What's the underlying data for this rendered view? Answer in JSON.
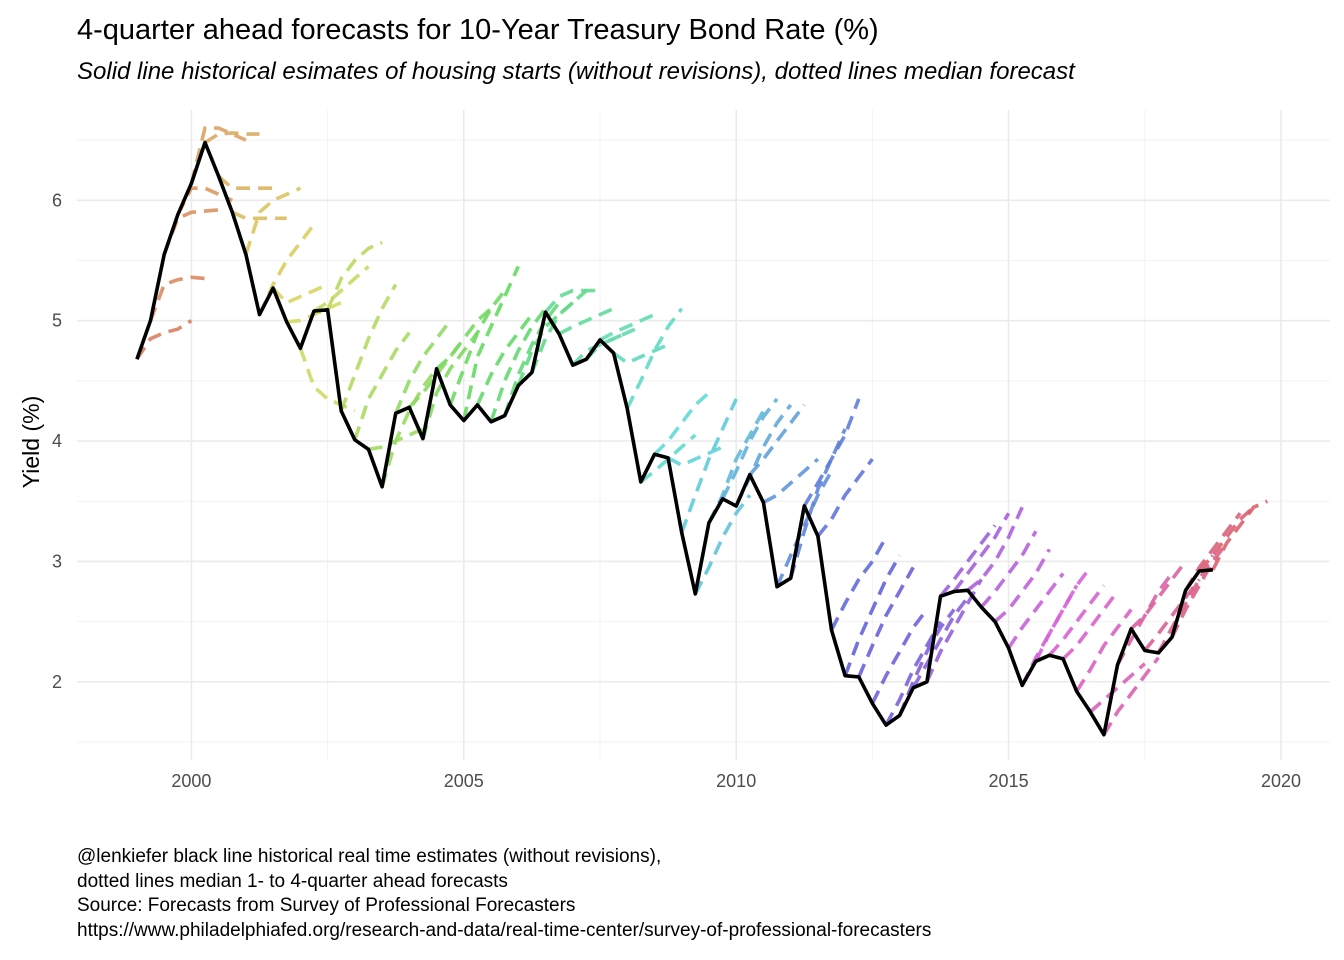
{
  "chart_data": {
    "type": "line",
    "title": "4-quarter ahead forecasts for 10-Year Treasury Bond Rate (%)",
    "subtitle": "Solid line historical esimates of housing starts (without revisions), dotted lines median forecast",
    "xlabel": "",
    "ylabel": "Yield (%)",
    "xlim": [
      1997.9,
      2020.9
    ],
    "ylim": [
      1.35,
      6.75
    ],
    "x_ticks": [
      2000,
      2005,
      2010,
      2015,
      2020
    ],
    "x_tick_labels": [
      "2000",
      "2005",
      "2010",
      "2015",
      "2020"
    ],
    "y_ticks": [
      2,
      3,
      4,
      5,
      6
    ],
    "y_tick_labels": [
      "2",
      "3",
      "4",
      "5",
      "6"
    ],
    "grid": true,
    "legend": "none",
    "historical": {
      "name": "",
      "color": "#000000",
      "x": [
        1999.0,
        1999.25,
        1999.5,
        1999.75,
        2000.0,
        2000.25,
        2000.5,
        2000.75,
        2001.0,
        2001.25,
        2001.5,
        2001.75,
        2002.0,
        2002.25,
        2002.5,
        2002.75,
        2003.0,
        2003.25,
        2003.5,
        2003.75,
        2004.0,
        2004.25,
        2004.5,
        2004.75,
        2005.0,
        2005.25,
        2005.5,
        2005.75,
        2006.0,
        2006.25,
        2006.5,
        2006.75,
        2007.0,
        2007.25,
        2007.5,
        2007.75,
        2008.0,
        2008.25,
        2008.5,
        2008.75,
        2009.0,
        2009.25,
        2009.5,
        2009.75,
        2010.0,
        2010.25,
        2010.5,
        2010.75,
        2011.0,
        2011.25,
        2011.5,
        2011.75,
        2012.0,
        2012.25,
        2012.5,
        2012.75,
        2013.0,
        2013.25,
        2013.5,
        2013.75,
        2014.0,
        2014.25,
        2014.5,
        2014.75,
        2015.0,
        2015.25,
        2015.5,
        2015.75,
        2016.0,
        2016.25,
        2016.5,
        2016.75,
        2017.0,
        2017.25,
        2017.5,
        2017.75,
        2018.0,
        2018.25,
        2018.5,
        2018.75
      ],
      "y": [
        4.68,
        5.0,
        5.55,
        5.88,
        6.14,
        6.48,
        6.2,
        5.9,
        5.55,
        5.05,
        5.27,
        4.99,
        4.77,
        5.08,
        5.09,
        4.25,
        4.01,
        3.93,
        3.62,
        4.23,
        4.28,
        4.02,
        4.6,
        4.3,
        4.17,
        4.3,
        4.16,
        4.21,
        4.46,
        4.57,
        5.07,
        4.89,
        4.63,
        4.68,
        4.84,
        4.73,
        4.27,
        3.66,
        3.89,
        3.86,
        3.24,
        2.73,
        3.32,
        3.52,
        3.46,
        3.72,
        3.49,
        2.79,
        2.86,
        3.46,
        3.21,
        2.43,
        2.05,
        2.04,
        1.82,
        1.64,
        1.72,
        1.95,
        2.0,
        2.71,
        2.75,
        2.76,
        2.62,
        2.5,
        2.28,
        1.97,
        2.17,
        2.22,
        2.19,
        1.92,
        1.75,
        1.56,
        2.14,
        2.44,
        2.26,
        2.24,
        2.37,
        2.76,
        2.92,
        2.93
      ]
    },
    "forecast_series": [
      {
        "start": 1999.0,
        "values": [
          4.68,
          4.85,
          4.9,
          4.93,
          5.0
        ]
      },
      {
        "start": 1999.25,
        "values": [
          5.0,
          5.3,
          5.34,
          5.36,
          5.35
        ]
      },
      {
        "start": 1999.5,
        "values": [
          5.55,
          5.85,
          5.9,
          5.91,
          5.92
        ]
      },
      {
        "start": 1999.75,
        "values": [
          5.88,
          6.1,
          6.1,
          6.05,
          6.0
        ]
      },
      {
        "start": 2000.0,
        "values": [
          6.14,
          6.6,
          6.6,
          6.55,
          6.5
        ]
      },
      {
        "start": 2000.25,
        "values": [
          6.48,
          6.55,
          6.56,
          6.55,
          6.55
        ]
      },
      {
        "start": 2000.5,
        "values": [
          6.2,
          6.1,
          6.1,
          6.1,
          6.1
        ]
      },
      {
        "start": 2000.75,
        "values": [
          5.9,
          5.85,
          5.85,
          5.85,
          5.85
        ]
      },
      {
        "start": 2001.0,
        "values": [
          5.55,
          5.9,
          6.0,
          6.05,
          6.1
        ]
      },
      {
        "start": 2001.25,
        "values": [
          5.05,
          5.3,
          5.5,
          5.65,
          5.8
        ]
      },
      {
        "start": 2001.5,
        "values": [
          5.27,
          5.15,
          5.2,
          5.25,
          5.3
        ]
      },
      {
        "start": 2001.75,
        "values": [
          4.99,
          5.0,
          5.05,
          5.1,
          5.15
        ]
      },
      {
        "start": 2002.0,
        "values": [
          4.77,
          4.45,
          4.35,
          4.3,
          4.25
        ]
      },
      {
        "start": 2002.25,
        "values": [
          5.08,
          5.15,
          5.25,
          5.35,
          5.45
        ]
      },
      {
        "start": 2002.5,
        "values": [
          5.09,
          5.35,
          5.5,
          5.6,
          5.65
        ]
      },
      {
        "start": 2002.75,
        "values": [
          4.25,
          4.55,
          4.85,
          5.1,
          5.3
        ]
      },
      {
        "start": 2003.0,
        "values": [
          4.01,
          4.35,
          4.55,
          4.75,
          4.9
        ]
      },
      {
        "start": 2003.25,
        "values": [
          3.93,
          3.95,
          4.0,
          4.05,
          4.1
        ]
      },
      {
        "start": 2003.5,
        "values": [
          3.62,
          4.0,
          4.25,
          4.45,
          4.6
        ]
      },
      {
        "start": 2003.75,
        "values": [
          4.23,
          4.5,
          4.7,
          4.85,
          5.0
        ]
      },
      {
        "start": 2004.0,
        "values": [
          4.28,
          4.4,
          4.55,
          4.7,
          4.85
        ]
      },
      {
        "start": 2004.25,
        "values": [
          4.02,
          4.4,
          4.6,
          4.75,
          4.9
        ]
      },
      {
        "start": 2004.5,
        "values": [
          4.6,
          4.7,
          4.85,
          5.0,
          5.1
        ]
      },
      {
        "start": 2004.75,
        "values": [
          4.3,
          4.6,
          4.9,
          5.1,
          5.25
        ]
      },
      {
        "start": 2005.0,
        "values": [
          4.17,
          4.7,
          4.95,
          5.2,
          5.45
        ]
      },
      {
        "start": 2005.25,
        "values": [
          4.3,
          4.55,
          4.75,
          4.9,
          5.05
        ]
      },
      {
        "start": 2005.5,
        "values": [
          4.16,
          4.5,
          4.75,
          4.95,
          5.1
        ]
      },
      {
        "start": 2005.75,
        "values": [
          4.21,
          4.55,
          4.8,
          5.0,
          5.15
        ]
      },
      {
        "start": 2006.0,
        "values": [
          4.46,
          4.75,
          4.95,
          5.05,
          5.15
        ]
      },
      {
        "start": 2006.25,
        "values": [
          4.57,
          4.85,
          5.05,
          5.15,
          5.25
        ]
      },
      {
        "start": 2006.5,
        "values": [
          5.07,
          5.2,
          5.25,
          5.25,
          5.25
        ]
      },
      {
        "start": 2006.75,
        "values": [
          4.89,
          4.95,
          5.0,
          5.05,
          5.1
        ]
      },
      {
        "start": 2007.0,
        "values": [
          4.63,
          4.75,
          4.8,
          4.85,
          4.9
        ]
      },
      {
        "start": 2007.25,
        "values": [
          4.68,
          4.8,
          4.85,
          4.9,
          4.95
        ]
      },
      {
        "start": 2007.5,
        "values": [
          4.84,
          4.9,
          4.95,
          5.0,
          5.05
        ]
      },
      {
        "start": 2007.75,
        "values": [
          4.73,
          4.65,
          4.7,
          4.75,
          4.8
        ]
      },
      {
        "start": 2008.0,
        "values": [
          4.27,
          4.5,
          4.75,
          4.95,
          5.1
        ]
      },
      {
        "start": 2008.25,
        "values": [
          3.66,
          3.75,
          3.85,
          3.95,
          4.05
        ]
      },
      {
        "start": 2008.5,
        "values": [
          3.89,
          4.0,
          4.15,
          4.3,
          4.4
        ]
      },
      {
        "start": 2008.75,
        "values": [
          3.86,
          3.8,
          3.85,
          3.9,
          3.95
        ]
      },
      {
        "start": 2009.0,
        "values": [
          3.24,
          3.55,
          3.85,
          4.1,
          4.35
        ]
      },
      {
        "start": 2009.25,
        "values": [
          2.73,
          2.95,
          3.2,
          3.4,
          3.55
        ]
      },
      {
        "start": 2009.5,
        "values": [
          3.32,
          3.55,
          3.85,
          4.05,
          4.25
        ]
      },
      {
        "start": 2009.75,
        "values": [
          3.52,
          3.75,
          4.0,
          4.2,
          4.35
        ]
      },
      {
        "start": 2010.0,
        "values": [
          3.46,
          3.7,
          3.95,
          4.15,
          4.3
        ]
      },
      {
        "start": 2010.25,
        "values": [
          3.72,
          3.85,
          4.0,
          4.15,
          4.3
        ]
      },
      {
        "start": 2010.5,
        "values": [
          3.49,
          3.55,
          3.65,
          3.75,
          3.85
        ]
      },
      {
        "start": 2010.75,
        "values": [
          2.79,
          3.05,
          3.3,
          3.55,
          3.75
        ]
      },
      {
        "start": 2011.0,
        "values": [
          2.86,
          3.25,
          3.6,
          3.85,
          4.1
        ]
      },
      {
        "start": 2011.25,
        "values": [
          3.46,
          3.65,
          3.85,
          4.05,
          4.35
        ]
      },
      {
        "start": 2011.5,
        "values": [
          3.21,
          3.35,
          3.55,
          3.7,
          3.85
        ]
      },
      {
        "start": 2011.75,
        "values": [
          2.43,
          2.65,
          2.85,
          3.0,
          3.2
        ]
      },
      {
        "start": 2012.0,
        "values": [
          2.05,
          2.35,
          2.6,
          2.85,
          3.05
        ]
      },
      {
        "start": 2012.25,
        "values": [
          2.04,
          2.3,
          2.55,
          2.75,
          2.95
        ]
      },
      {
        "start": 2012.5,
        "values": [
          1.82,
          2.05,
          2.25,
          2.45,
          2.6
        ]
      },
      {
        "start": 2012.75,
        "values": [
          1.64,
          1.85,
          2.1,
          2.3,
          2.5
        ]
      },
      {
        "start": 2013.0,
        "values": [
          1.72,
          2.0,
          2.25,
          2.45,
          2.6
        ]
      },
      {
        "start": 2013.25,
        "values": [
          1.95,
          2.15,
          2.35,
          2.55,
          2.7
        ]
      },
      {
        "start": 2013.5,
        "values": [
          2.0,
          2.25,
          2.45,
          2.65,
          2.85
        ]
      },
      {
        "start": 2013.75,
        "values": [
          2.71,
          2.85,
          3.0,
          3.15,
          3.3
        ]
      },
      {
        "start": 2014.0,
        "values": [
          2.75,
          2.9,
          3.05,
          3.2,
          3.4
        ]
      },
      {
        "start": 2014.25,
        "values": [
          2.76,
          2.85,
          3.0,
          3.2,
          3.45
        ]
      },
      {
        "start": 2014.5,
        "values": [
          2.62,
          2.75,
          2.9,
          3.05,
          3.25
        ]
      },
      {
        "start": 2014.75,
        "values": [
          2.5,
          2.6,
          2.75,
          2.9,
          3.1
        ]
      },
      {
        "start": 2015.0,
        "values": [
          2.28,
          2.45,
          2.6,
          2.75,
          2.9
        ]
      },
      {
        "start": 2015.25,
        "values": [
          1.97,
          2.2,
          2.4,
          2.6,
          2.8
        ]
      },
      {
        "start": 2015.5,
        "values": [
          2.17,
          2.4,
          2.6,
          2.8,
          2.95
        ]
      },
      {
        "start": 2015.75,
        "values": [
          2.22,
          2.35,
          2.5,
          2.65,
          2.8
        ]
      },
      {
        "start": 2016.0,
        "values": [
          2.19,
          2.3,
          2.45,
          2.6,
          2.75
        ]
      },
      {
        "start": 2016.25,
        "values": [
          1.92,
          2.1,
          2.3,
          2.45,
          2.6
        ]
      },
      {
        "start": 2016.5,
        "values": [
          1.75,
          1.85,
          1.95,
          2.05,
          2.15
        ]
      },
      {
        "start": 2016.75,
        "values": [
          1.56,
          1.75,
          1.9,
          2.05,
          2.2
        ]
      },
      {
        "start": 2017.0,
        "values": [
          2.14,
          2.35,
          2.55,
          2.75,
          2.9
        ]
      },
      {
        "start": 2017.25,
        "values": [
          2.44,
          2.55,
          2.7,
          2.85,
          3.0
        ]
      },
      {
        "start": 2017.5,
        "values": [
          2.26,
          2.4,
          2.55,
          2.7,
          2.85
        ]
      },
      {
        "start": 2017.75,
        "values": [
          2.24,
          2.45,
          2.65,
          2.85,
          3.05
        ]
      },
      {
        "start": 2018.0,
        "values": [
          2.37,
          2.6,
          2.8,
          3.0,
          3.15
        ]
      },
      {
        "start": 2018.25,
        "values": [
          2.76,
          2.95,
          3.1,
          3.25,
          3.4
        ]
      },
      {
        "start": 2018.5,
        "values": [
          2.92,
          3.05,
          3.2,
          3.35,
          3.45
        ]
      },
      {
        "start": 2018.75,
        "values": [
          2.93,
          3.15,
          3.3,
          3.45,
          3.5
        ]
      }
    ]
  },
  "caption": {
    "line1": "@lenkiefer black line historical real time estimates (without revisions),",
    "line2": "dotted lines median 1- to 4-quarter ahead forecasts",
    "line3": "Source: Forecasts from Survey of Professional Forecasters",
    "line4": "https://www.philadelphiafed.org/research-and-data/real-time-center/survey-of-professional-forecasters"
  }
}
